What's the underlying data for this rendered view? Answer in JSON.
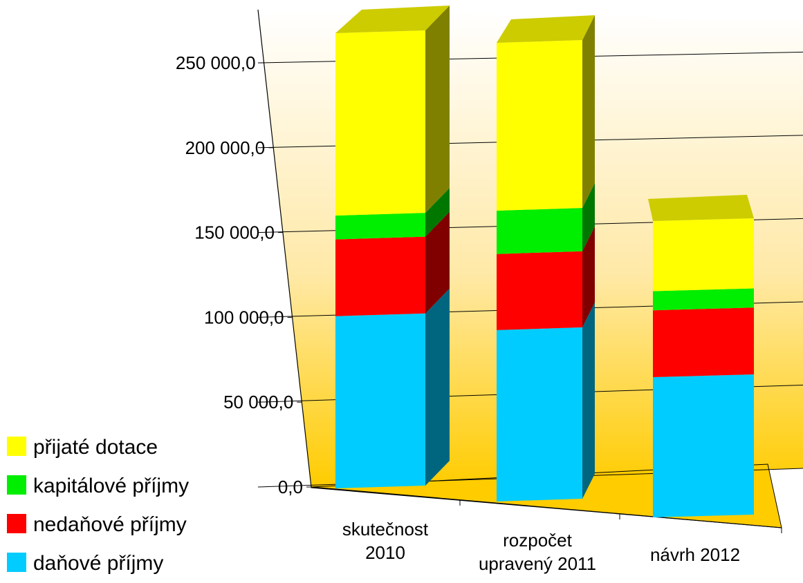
{
  "chart_data": {
    "type": "bar",
    "stacked": true,
    "three_d": true,
    "categories": [
      [
        "skutečnost",
        "2010"
      ],
      [
        "rozpočet",
        "upravený 2011"
      ],
      [
        "návrh 2012"
      ]
    ],
    "series": [
      {
        "name": "daňové příjmy",
        "color": "#00ccff",
        "values": [
          101000,
          99000,
          88000
        ]
      },
      {
        "name": "nedaňové příjmy",
        "color": "#ff0000",
        "values": [
          45000,
          44000,
          42000
        ]
      },
      {
        "name": "kapitálové příjmy",
        "color": "#00ee00",
        "values": [
          14000,
          25000,
          12000
        ]
      },
      {
        "name": "přijaté dotace",
        "color": "#ffff00",
        "values": [
          107000,
          97000,
          44000
        ]
      }
    ],
    "ylim": [
      0,
      250000
    ],
    "yticks": [
      "0,0",
      "50 000,0",
      "100 000,0",
      "150 000,0",
      "200 000,0",
      "250 000,0"
    ],
    "ytick_values": [
      0,
      50000,
      100000,
      150000,
      200000,
      250000
    ],
    "grid": true,
    "legend_position": "bottom-left",
    "background_gradient": [
      "#ffffff",
      "#ffcc00"
    ]
  }
}
